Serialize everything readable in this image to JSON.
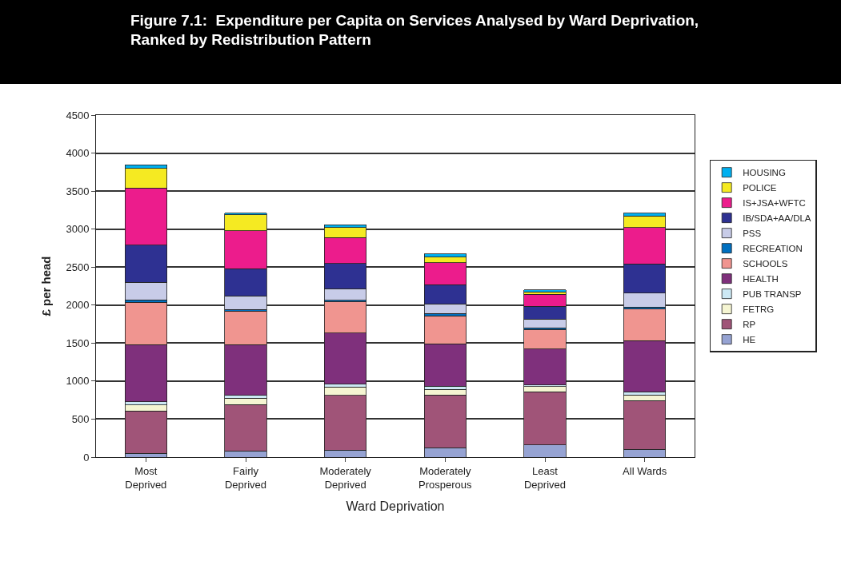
{
  "chart_data": {
    "type": "bar",
    "stacked": true,
    "title": "Figure 7.1:  Expenditure per Capita on Services Analysed by Ward Deprivation, Ranked by Redistribution Pattern",
    "xlabel": "Ward Deprivation",
    "ylabel": "£ per head",
    "categories": [
      "Most Deprived",
      "Fairly Deprived",
      "Moderately Deprived",
      "Moderately Prosperous",
      "Least Deprived",
      "All Wards"
    ],
    "ylim": [
      0,
      4500
    ],
    "yticks": [
      0,
      500,
      1000,
      1500,
      2000,
      2500,
      3000,
      3500,
      4000,
      4500
    ],
    "grid": "y",
    "legend": "right",
    "series": [
      {
        "name": "HE",
        "color": "#96a3d3",
        "values": [
          50,
          80,
          90,
          125,
          160,
          100
        ]
      },
      {
        "name": "RP",
        "color": "#a05478",
        "values": [
          555,
          610,
          720,
          695,
          700,
          645
        ]
      },
      {
        "name": "FETRG",
        "color": "#f5f5d2",
        "values": [
          80,
          85,
          115,
          70,
          70,
          75
        ]
      },
      {
        "name": "PUB TRANSP",
        "color": "#cce8f4",
        "values": [
          45,
          35,
          35,
          45,
          20,
          40
        ]
      },
      {
        "name": "HEALTH",
        "color": "#7f307c",
        "values": [
          750,
          670,
          670,
          555,
          470,
          670
        ]
      },
      {
        "name": "SCHOOLS",
        "color": "#f09590",
        "values": [
          555,
          440,
          420,
          370,
          260,
          420
        ]
      },
      {
        "name": "RECREATION",
        "color": "#0070c0",
        "values": [
          35,
          20,
          15,
          30,
          20,
          25
        ]
      },
      {
        "name": "PSS",
        "color": "#c8cce8",
        "values": [
          230,
          180,
          150,
          125,
          115,
          185
        ]
      },
      {
        "name": "IB/SDA+AA/DLA",
        "color": "#2e3192",
        "values": [
          490,
          360,
          330,
          255,
          170,
          380
        ]
      },
      {
        "name": "IS+JSA+WFTC",
        "color": "#ec1c8c",
        "values": [
          750,
          500,
          345,
          290,
          155,
          480
        ]
      },
      {
        "name": "POLICE",
        "color": "#f5ea22",
        "values": [
          260,
          210,
          130,
          70,
          35,
          155
        ]
      },
      {
        "name": "HOUSING",
        "color": "#00b0f0",
        "values": [
          45,
          20,
          35,
          45,
          25,
          35
        ]
      }
    ]
  }
}
